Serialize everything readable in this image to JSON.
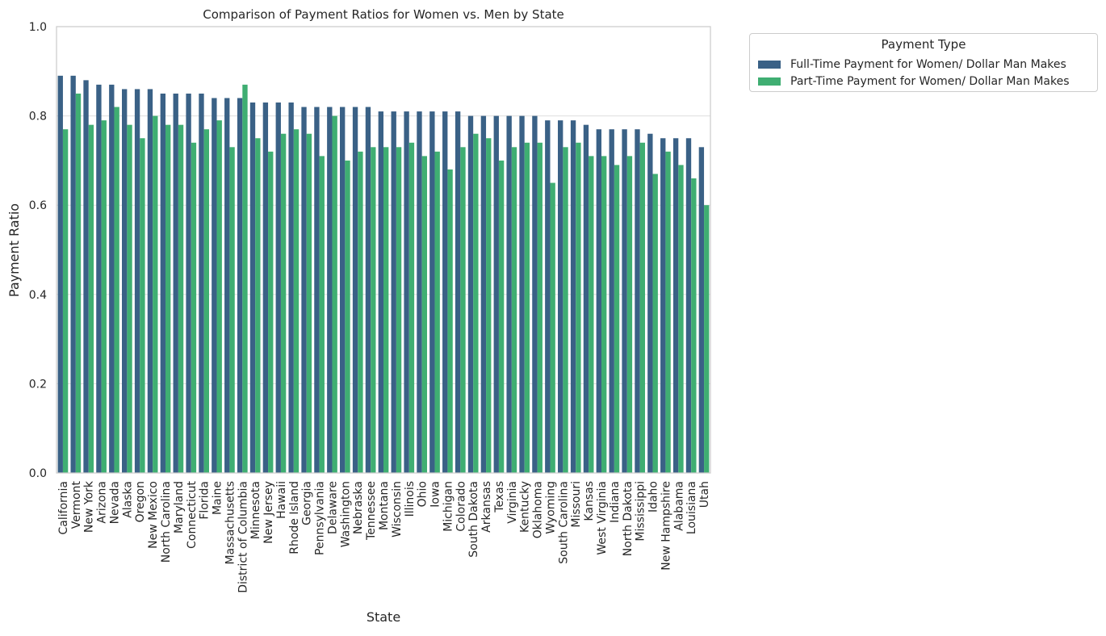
{
  "chart_data": {
    "type": "bar",
    "title": "Comparison of Payment Ratios for Women vs. Men by State",
    "xlabel": "State",
    "ylabel": "Payment Ratio",
    "ylim": [
      0,
      1.0
    ],
    "yticks": [
      "0.0",
      "0.2",
      "0.4",
      "0.6",
      "0.8",
      "1.0"
    ],
    "grid": true,
    "legend": {
      "title": "Payment Type",
      "placement": "outside top-right"
    },
    "categories": [
      "California",
      "Vermont",
      "New York",
      "Arizona",
      "Nevada",
      "Alaska",
      "Oregon",
      "New Mexico",
      "North Carolina",
      "Maryland",
      "Connecticut",
      "Florida",
      "Maine",
      "Massachusetts",
      "District of Columbia",
      "Minnesota",
      "New Jersey",
      "Hawaii",
      "Rhode Island",
      "Georgia",
      "Pennsylvania",
      "Delaware",
      "Washington",
      "Nebraska",
      "Tennessee",
      "Montana",
      "Wisconsin",
      "Illinois",
      "Ohio",
      "Iowa",
      "Michigan",
      "Colorado",
      "South Dakota",
      "Arkansas",
      "Texas",
      "Virginia",
      "Kentucky",
      "Oklahoma",
      "Wyoming",
      "South Carolina",
      "Missouri",
      "Kansas",
      "West Virginia",
      "Indiana",
      "North Dakota",
      "Mississippi",
      "Idaho",
      "New Hampshire",
      "Alabama",
      "Louisiana",
      "Utah"
    ],
    "series": [
      {
        "name": "Full-Time Payment for Women/ Dollar Man Makes",
        "color": "#3a6186",
        "values": [
          0.89,
          0.89,
          0.88,
          0.87,
          0.87,
          0.86,
          0.86,
          0.86,
          0.85,
          0.85,
          0.85,
          0.85,
          0.84,
          0.84,
          0.84,
          0.83,
          0.83,
          0.83,
          0.83,
          0.82,
          0.82,
          0.82,
          0.82,
          0.82,
          0.82,
          0.81,
          0.81,
          0.81,
          0.81,
          0.81,
          0.81,
          0.81,
          0.8,
          0.8,
          0.8,
          0.8,
          0.8,
          0.8,
          0.79,
          0.79,
          0.79,
          0.78,
          0.77,
          0.77,
          0.77,
          0.77,
          0.76,
          0.75,
          0.75,
          0.75,
          0.73
        ]
      },
      {
        "name": "Part-Time Payment for Women/ Dollar Man Makes",
        "color": "#3fae72",
        "values": [
          0.77,
          0.85,
          0.78,
          0.79,
          0.82,
          0.78,
          0.75,
          0.8,
          0.78,
          0.78,
          0.74,
          0.77,
          0.79,
          0.73,
          0.87,
          0.75,
          0.72,
          0.76,
          0.77,
          0.76,
          0.71,
          0.8,
          0.7,
          0.72,
          0.73,
          0.73,
          0.73,
          0.74,
          0.71,
          0.72,
          0.68,
          0.73,
          0.76,
          0.75,
          0.7,
          0.73,
          0.74,
          0.74,
          0.65,
          0.73,
          0.74,
          0.71,
          0.71,
          0.69,
          0.71,
          0.74,
          0.67,
          0.72,
          0.69,
          0.66,
          0.6
        ]
      }
    ]
  }
}
